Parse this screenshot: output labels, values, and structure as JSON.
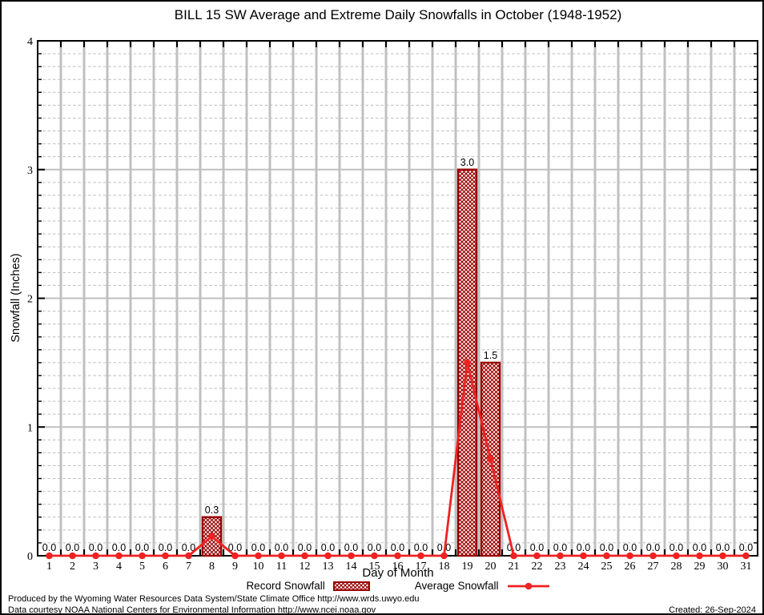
{
  "title": "BILL 15 SW Average and Extreme Daily Snowfalls in October (1948-1952)",
  "axes": {
    "xlabel": "Day of Month",
    "ylabel": "Snowfall (Inches)"
  },
  "legend": {
    "record_label": "Record Snowfall",
    "average_label": "Average Snowfall"
  },
  "footer": {
    "line1": "Produced by the Wyoming Water Resources Data System/State Climate Office http://www.wrds.uwyo.edu",
    "line2": "Data courtesy NOAA National Centers for Environmental Information http://www.ncei.noaa.gov",
    "created": "Created: 26-Sep-2024"
  },
  "colors": {
    "bar": "#990000",
    "line": "#ee2222",
    "grid_major": "#c0c0c0",
    "grid_minor": "#bdbdbd",
    "frame": "#000000"
  },
  "chart_data": {
    "type": "bar",
    "title": "BILL 15 SW Average and Extreme Daily Snowfalls in October (1948-1952)",
    "xlabel": "Day of Month",
    "ylabel": "Snowfall (Inches)",
    "ylim": [
      0,
      4
    ],
    "y_major_ticks": [
      0,
      1,
      2,
      3,
      4
    ],
    "y_minor_step": 0.1,
    "grid": "on",
    "legend_position": "bottom-center",
    "categories": [
      1,
      2,
      3,
      4,
      5,
      6,
      7,
      8,
      9,
      10,
      11,
      12,
      13,
      14,
      15,
      16,
      17,
      18,
      19,
      20,
      21,
      22,
      23,
      24,
      25,
      26,
      27,
      28,
      29,
      30,
      31
    ],
    "series": [
      {
        "name": "Record Snowfall",
        "type": "bar",
        "values": [
          0,
          0,
          0,
          0,
          0,
          0,
          0,
          0.3,
          0,
          0,
          0,
          0,
          0,
          0,
          0,
          0,
          0,
          0,
          3.0,
          1.5,
          0,
          0,
          0,
          0,
          0,
          0,
          0,
          0,
          0,
          0,
          0
        ],
        "labels_shown": true
      },
      {
        "name": "Average Snowfall",
        "type": "line",
        "values": [
          0,
          0,
          0,
          0,
          0,
          0,
          0,
          0.15,
          0,
          0,
          0,
          0,
          0,
          0,
          0,
          0,
          0,
          0,
          1.5,
          0.75,
          0,
          0,
          0,
          0,
          0,
          0,
          0,
          0,
          0,
          0,
          0
        ]
      }
    ]
  }
}
